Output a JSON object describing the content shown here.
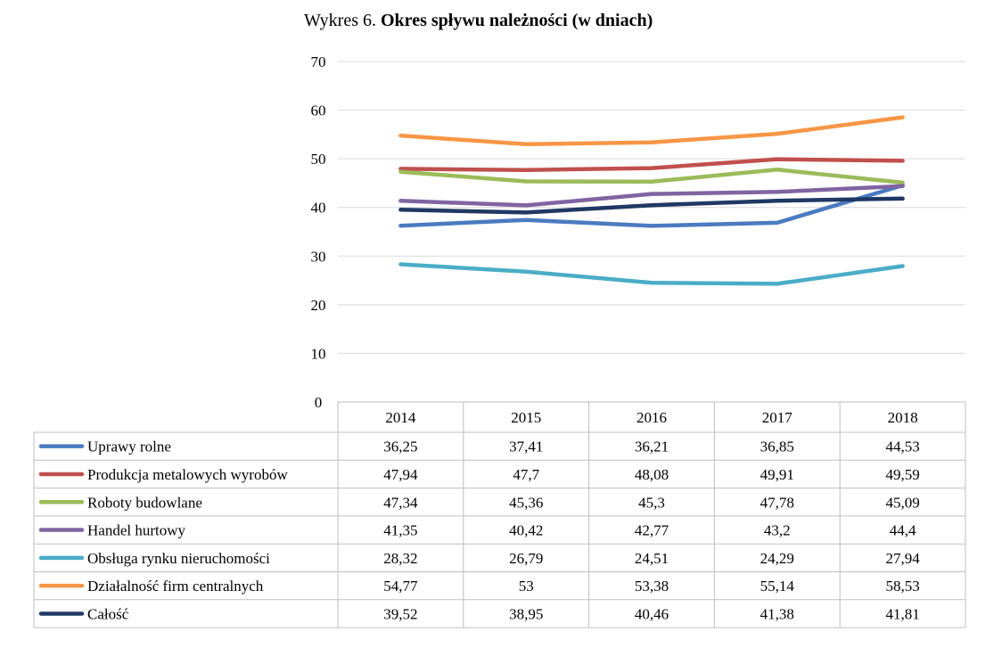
{
  "title": {
    "prefix": "Wykres 6. ",
    "main": "Okres spływu należności (w dniach)"
  },
  "chart_data": {
    "type": "line",
    "x": [
      "2014",
      "2015",
      "2016",
      "2017",
      "2018"
    ],
    "ylim": [
      0,
      70
    ],
    "yticks": [
      "0",
      "10",
      "20",
      "30",
      "40",
      "50",
      "60",
      "70"
    ],
    "grid": true,
    "legend": "data-table-below",
    "series": [
      {
        "name": "Uprawy rolne",
        "color": "#4a7bc0",
        "values": [
          36.25,
          37.41,
          36.21,
          36.85,
          44.53
        ],
        "labels": [
          "36,25",
          "37,41",
          "36,21",
          "36,85",
          "44,53"
        ]
      },
      {
        "name": "Produkcja metalowych wyrobów",
        "color": "#c0504d",
        "values": [
          47.94,
          47.7,
          48.08,
          49.91,
          49.59
        ],
        "labels": [
          "47,94",
          "47,7",
          "48,08",
          "49,91",
          "49,59"
        ]
      },
      {
        "name": "Roboty budowlane",
        "color": "#9bbb59",
        "values": [
          47.34,
          45.36,
          45.3,
          47.78,
          45.09
        ],
        "labels": [
          "47,34",
          "45,36",
          "45,3",
          "47,78",
          "45,09"
        ]
      },
      {
        "name": "Handel hurtowy",
        "color": "#8064a2",
        "values": [
          41.35,
          40.42,
          42.77,
          43.2,
          44.4
        ],
        "labels": [
          "41,35",
          "40,42",
          "42,77",
          "43,2",
          "44,4"
        ]
      },
      {
        "name": "Obsługa rynku nieruchomości",
        "color": "#4bacc6",
        "values": [
          28.32,
          26.79,
          24.51,
          24.29,
          27.94
        ],
        "labels": [
          "28,32",
          "26,79",
          "24,51",
          "24,29",
          "27,94"
        ]
      },
      {
        "name": "Działalność firm centralnych",
        "color": "#f79646",
        "values": [
          54.77,
          53,
          53.38,
          55.14,
          58.53
        ],
        "labels": [
          "54,77",
          "53",
          "53,38",
          "55,14",
          "58,53"
        ]
      },
      {
        "name": "Całość",
        "color": "#1f3864",
        "values": [
          39.52,
          38.95,
          40.46,
          41.38,
          41.81
        ],
        "labels": [
          "39,52",
          "38,95",
          "40,46",
          "41,38",
          "41,81"
        ]
      }
    ]
  }
}
